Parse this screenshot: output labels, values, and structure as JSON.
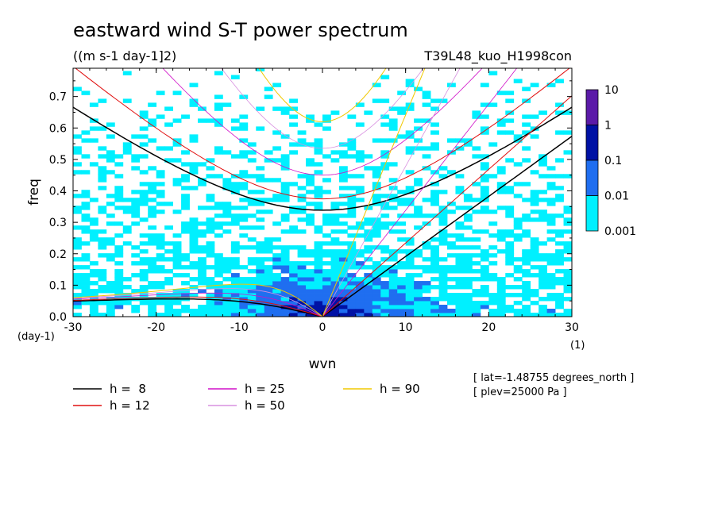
{
  "chart_data": {
    "type": "heatmap",
    "title": "eastward wind S-T power spectrum",
    "subtitle": "((m s-1 day-1]2)",
    "dataset_label": "T39L48_kuo_H1998con",
    "xlabel": "wvn",
    "ylabel": "freq",
    "x_unit": "(1)",
    "y_unit": "(day-1)",
    "xlim": [
      -30,
      30
    ],
    "ylim": [
      0.0,
      0.79
    ],
    "x_ticks": [
      -30,
      -20,
      -10,
      0,
      10,
      20,
      30
    ],
    "y_ticks": [
      0.0,
      0.1,
      0.2,
      0.3,
      0.4,
      0.5,
      0.6,
      0.7
    ],
    "x_tick_labels": [
      "-30",
      "-20",
      "-10",
      "0",
      "10",
      "20",
      "30"
    ],
    "y_tick_labels": [
      "0.0",
      "0.1",
      "0.2",
      "0.3",
      "0.4",
      "0.5",
      "0.6",
      "0.7"
    ],
    "colorbar": {
      "levels": [
        "10",
        "1",
        "0.1",
        "0.01",
        "0.001"
      ],
      "colors": [
        "#5b1aa8",
        "#0011a4",
        "#1f6ef0",
        "#00f0ff"
      ]
    },
    "field_regions": [
      {
        "level": 1,
        "color": "#00f0ff",
        "region": "broad background",
        "x_range": [
          -30,
          30
        ],
        "y_range": [
          0.0,
          0.45
        ]
      },
      {
        "level": 2,
        "color": "#1f6ef0",
        "region": "low-frequency band",
        "x_range": [
          -16,
          16
        ],
        "y_range": [
          0.0,
          0.22
        ]
      },
      {
        "level": 3,
        "color": "#0011a4",
        "region": "near origin",
        "x_range": [
          -3,
          4
        ],
        "y_range": [
          0.0,
          0.05
        ]
      }
    ],
    "dispersion_curves": [
      {
        "name": "h =  8",
        "h": 8,
        "color": "#000000"
      },
      {
        "name": "h = 12",
        "h": 12,
        "color": "#e01010"
      },
      {
        "name": "h = 25",
        "h": 25,
        "color": "#d010c8"
      },
      {
        "name": "h = 50",
        "h": 50,
        "color": "#d890e0"
      },
      {
        "name": "h = 90",
        "h": 90,
        "color": "#f0c800"
      }
    ],
    "legend_placement": "bottom",
    "annotations": [
      "[ lat=-1.48755 degrees_north ]",
      "[ plev=25000 Pa ]"
    ]
  }
}
